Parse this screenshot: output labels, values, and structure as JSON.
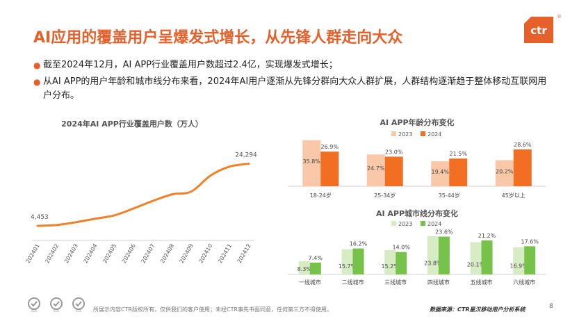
{
  "page": {
    "title": "AI应用的覆盖用户呈爆发式增长，从先锋人群走向大众",
    "logo_text": "ctr",
    "logo_mark": "®",
    "page_number": "8",
    "footer_note": "所展示内容CTR版权所有，仅供我们的客户使用；未经CTR事先书面同意，任何第三方不得使用。",
    "footer_source": "数据来源：CTR星汉移动用户分析系统",
    "cert_labels": [
      "SGS",
      "SGS",
      "SGS"
    ]
  },
  "bullets": [
    "截至2024年12月，AI APP行业覆盖用户数超过2.4亿，实现爆发式增长；",
    "从AI  APP的用户年龄和城市线分布来看，2024年AI用户逐渐从先锋分群向大众人群扩展，人群结构逐渐趋于整体移动互联网用户分布。"
  ],
  "colors": {
    "accent": "#E5602A",
    "orange_line": "#F28028",
    "age_2023": "#F8C8A8",
    "age_2024": "#F26E22",
    "city_2023": "#D7EBC4",
    "city_2024": "#76C24A"
  },
  "chart_data": [
    {
      "type": "line",
      "title": "2024年AI APP行业覆盖用户数（万人）",
      "categories": [
        "202401",
        "202402",
        "202403",
        "202404",
        "202405",
        "202406",
        "202407",
        "202408",
        "202409",
        "202410",
        "202411",
        "202412"
      ],
      "values": [
        4453,
        4700,
        5600,
        6700,
        7800,
        10000,
        12400,
        14500,
        15400,
        20500,
        23400,
        24294
      ],
      "data_labels": {
        "first": "4,453",
        "last": "24,294"
      },
      "ylim": [
        0,
        30000
      ],
      "grid": false
    },
    {
      "type": "bar",
      "title": "AI APP年龄分布变化",
      "categories": [
        "18-24岁",
        "25-34岁",
        "35-44岁",
        "45岁以上"
      ],
      "series": [
        {
          "name": "2023",
          "values": [
            35.8,
            24.7,
            19.4,
            20.2
          ],
          "labels": [
            "35.8%",
            "24.7%",
            "19.4%",
            "20.2%"
          ]
        },
        {
          "name": "2024",
          "values": [
            26.9,
            23.0,
            21.5,
            28.6
          ],
          "labels": [
            "26.9%",
            "23.0%",
            "21.5%",
            "28.6%"
          ]
        }
      ],
      "ylim": [
        0,
        40
      ],
      "legend": "top"
    },
    {
      "type": "bar",
      "title": "AI APP城市线分布变化",
      "categories": [
        "一线城市",
        "二线城市",
        "三线城市",
        "四线城市",
        "五线城市",
        "六线城市"
      ],
      "series": [
        {
          "name": "2023",
          "values": [
            8.3,
            15.7,
            15.2,
            23.8,
            20.1,
            16.9
          ],
          "labels": [
            "8.3%",
            "15.7%",
            "15.2%",
            "23.8%",
            "20.1%",
            "16.9%"
          ]
        },
        {
          "name": "2024",
          "values": [
            7.4,
            16.2,
            14.0,
            23.6,
            21.2,
            17.6
          ],
          "labels": [
            "7.4%",
            "16.2%",
            "14.0%",
            "23.6%",
            "21.2%",
            "17.6%"
          ]
        }
      ],
      "ylim": [
        0,
        26
      ],
      "legend": "top"
    }
  ]
}
